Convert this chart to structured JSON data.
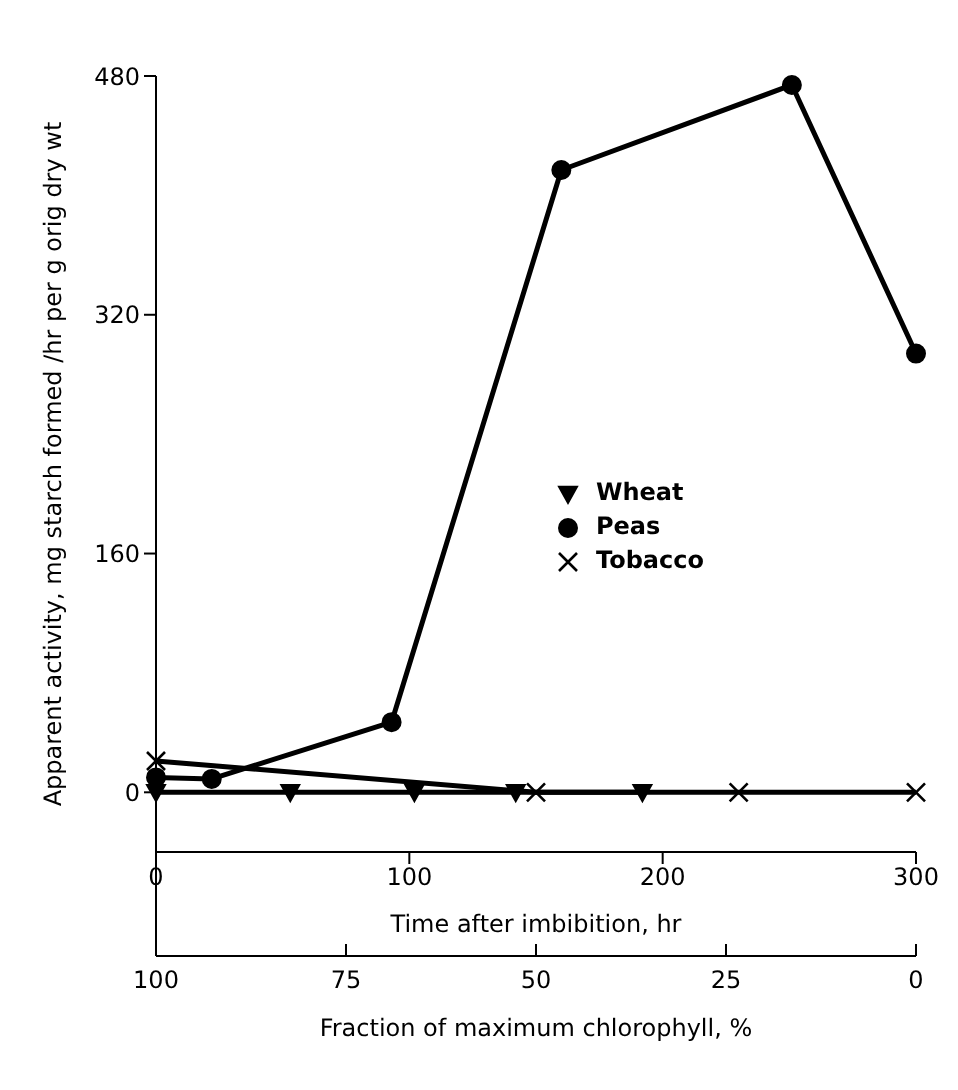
{
  "chart_data": {
    "type": "line",
    "xlabel": "Time after imbibition,    hr",
    "x2label": "Fraction of maximum chlorophyll,   %",
    "ylabel": "Apparent activity,   mg starch formed /hr per g orig dry wt",
    "xlim": [
      0,
      300
    ],
    "xticks": [
      0,
      100,
      200,
      300
    ],
    "x2lim": [
      100,
      0
    ],
    "x2ticks": [
      100,
      75,
      50,
      25,
      0
    ],
    "ylim": [
      -40,
      480
    ],
    "yticks": [
      0,
      160,
      320,
      480
    ],
    "grid": false,
    "legend": "right",
    "series": [
      {
        "name": "Wheat",
        "color": "#000000",
        "marker": "triangle",
        "x": [
          0,
          53,
          102,
          142,
          192
        ],
        "values": [
          0,
          0,
          0,
          0,
          0
        ]
      },
      {
        "name": "Peas",
        "color": "#000000",
        "marker": "circle",
        "x": [
          0,
          22,
          93,
          160,
          251,
          300
        ],
        "values": [
          10,
          9,
          47,
          417,
          474,
          294
        ]
      },
      {
        "name": "Tobacco",
        "color": "#000000",
        "marker": "cross",
        "x": [
          0,
          150,
          230,
          300
        ],
        "values": [
          21,
          0,
          0,
          0
        ]
      }
    ]
  }
}
